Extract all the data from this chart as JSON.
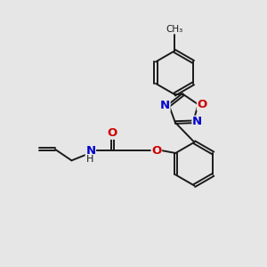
{
  "background_color": "#e6e6e6",
  "bond_color": "#1a1a1a",
  "atom_colors": {
    "N": "#0000cc",
    "O": "#cc0000",
    "C": "#1a1a1a"
  },
  "font_size_atom": 9.5,
  "lw": 1.4,
  "dbo": 0.055
}
